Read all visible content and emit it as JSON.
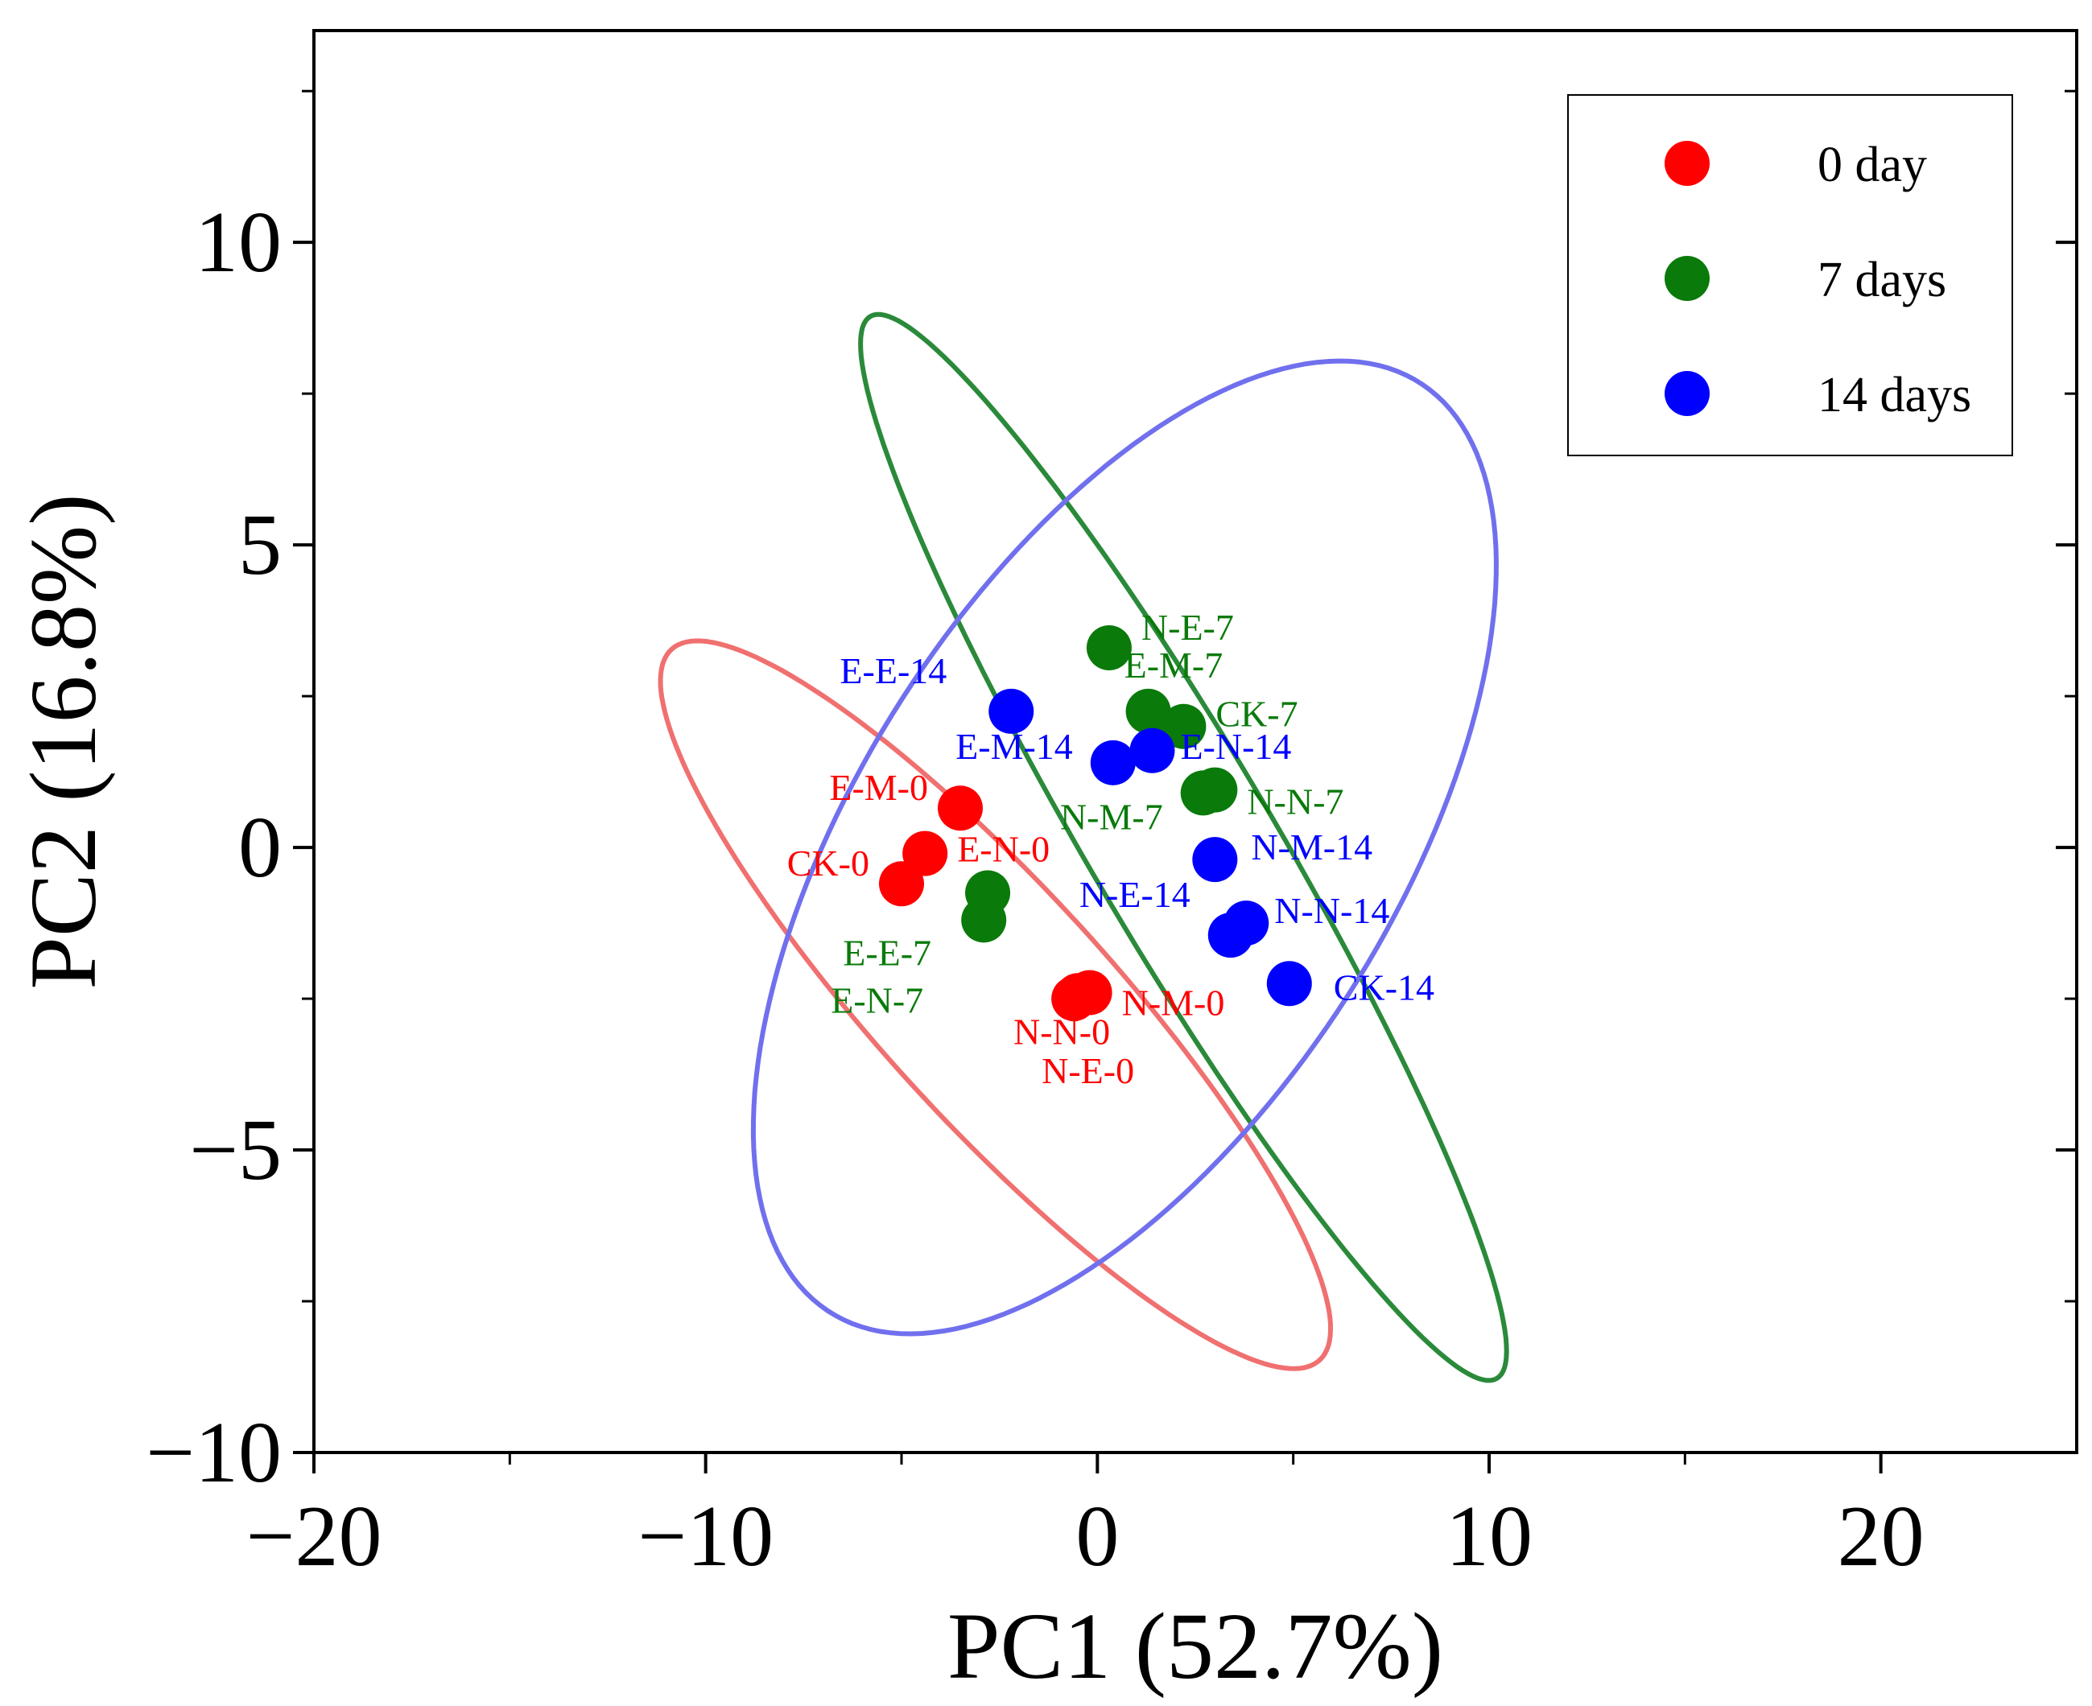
{
  "chart_data": {
    "type": "scatter",
    "title": "",
    "xlabel": "PC1 (52.7%)",
    "ylabel": "PC2 (16.8%)",
    "xlim": [
      -20,
      25
    ],
    "ylim": [
      -10,
      13.5
    ],
    "xticks": [
      -20,
      -10,
      0,
      10,
      20
    ],
    "xtick_labels": [
      "−20",
      "−10",
      "0",
      "10",
      "20"
    ],
    "yticks": [
      -10,
      -5,
      0,
      5,
      10
    ],
    "ytick_labels": [
      "−10",
      "−5",
      "0",
      "5",
      "10"
    ],
    "grid": false,
    "legend_position": "top-right",
    "series": [
      {
        "name": "0 day",
        "color": "#ff0000",
        "ellipse_color": "#f07070",
        "ellipse": {
          "cx": -2.6,
          "cy": -2.6,
          "rx": 10.2,
          "ry": 2.3,
          "angle_deg": -34
        },
        "points": [
          {
            "label": "E-M-0",
            "x": -3.5,
            "y": 0.65
          },
          {
            "label": "CK-0",
            "x": -5.0,
            "y": -0.6
          },
          {
            "label": "E-N-0",
            "x": -4.4,
            "y": -0.1
          },
          {
            "label": "N-N-0",
            "x": -0.5,
            "y": -2.45
          },
          {
            "label": "N-M-0",
            "x": -0.2,
            "y": -2.4
          },
          {
            "label": "N-E-0",
            "x": -0.6,
            "y": -2.5
          }
        ]
      },
      {
        "name": "7 days",
        "color": "#0a7a0a",
        "ellipse_color": "#2a8a3a",
        "ellipse": {
          "cx": 2.2,
          "cy": 0.0,
          "rx": 11.9,
          "ry": 2.0,
          "angle_deg": -47
        },
        "points": [
          {
            "label": "N-E-7",
            "x": 0.3,
            "y": 3.3
          },
          {
            "label": "E-M-7",
            "x": 1.3,
            "y": 2.25
          },
          {
            "label": "CK-7",
            "x": 2.2,
            "y": 2.0
          },
          {
            "label": "N-N-7",
            "x": 3.0,
            "y": 0.95
          },
          {
            "label": "N-M-7",
            "x": 2.7,
            "y": 0.9
          },
          {
            "label": "E-E-7",
            "x": -2.8,
            "y": -0.75
          },
          {
            "label": "E-N-7",
            "x": -2.9,
            "y": -1.2
          }
        ]
      },
      {
        "name": "14 days",
        "color": "#0000ff",
        "ellipse_color": "#7070ee",
        "ellipse": {
          "cx": 0.7,
          "cy": 0.0,
          "rx": 11.1,
          "ry": 5.6,
          "angle_deg": 37
        },
        "points": [
          {
            "label": "E-E-14",
            "x": -2.2,
            "y": 2.25
          },
          {
            "label": "E-M-14",
            "x": 0.4,
            "y": 1.4
          },
          {
            "label": "E-N-14",
            "x": 1.4,
            "y": 1.6
          },
          {
            "label": "N-M-14",
            "x": 3.0,
            "y": -0.2
          },
          {
            "label": "N-E-14",
            "x": 3.4,
            "y": -1.45
          },
          {
            "label": "N-N-14",
            "x": 3.8,
            "y": -1.25
          },
          {
            "label": "CK-14",
            "x": 4.9,
            "y": -2.25
          }
        ]
      }
    ],
    "legend": [
      {
        "label": "0 day",
        "color": "#ff0000"
      },
      {
        "label": "7 days",
        "color": "#0a7a0a"
      },
      {
        "label": "14 days",
        "color": "#0000ff"
      }
    ]
  }
}
